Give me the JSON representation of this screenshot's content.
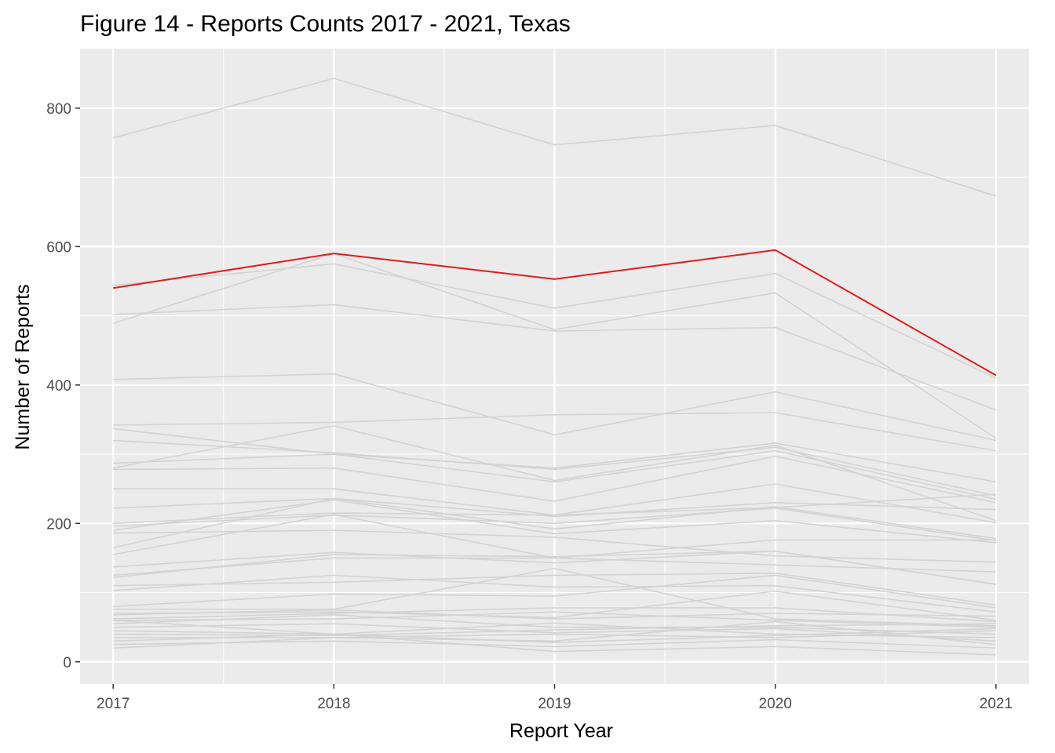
{
  "chart_data": {
    "type": "line",
    "title": "Figure 14 - Reports Counts 2017 - 2021, Texas",
    "xlabel": "Report Year",
    "ylabel": "Number of Reports",
    "x": [
      2017,
      2018,
      2019,
      2020,
      2021
    ],
    "xlim": [
      2016.85,
      2021.15
    ],
    "ylim": [
      -32,
      886
    ],
    "y_ticks": [
      0,
      200,
      400,
      600,
      800
    ],
    "grid": true,
    "background": "#ebebeb",
    "colors": {
      "highlight": "#e41a1c",
      "other": "#d3d3d3",
      "grid": "#ffffff"
    },
    "highlight_series": {
      "name": "Texas",
      "values": [
        540,
        590,
        553,
        595,
        414
      ]
    },
    "other_series": [
      [
        757,
        843,
        747,
        775,
        673
      ],
      [
        544,
        575,
        511,
        561,
        410
      ],
      [
        489,
        590,
        480,
        533,
        323
      ],
      [
        502,
        516,
        478,
        483,
        364
      ],
      [
        408,
        416,
        328,
        390,
        320
      ],
      [
        342,
        346,
        357,
        360,
        305
      ],
      [
        337,
        300,
        280,
        316,
        260
      ],
      [
        320,
        302,
        278,
        310,
        240
      ],
      [
        287,
        300,
        260,
        305,
        235
      ],
      [
        280,
        341,
        262,
        313,
        204
      ],
      [
        278,
        280,
        232,
        297,
        230
      ],
      [
        250,
        250,
        212,
        257,
        201
      ],
      [
        222,
        236,
        210,
        230,
        220
      ],
      [
        200,
        215,
        212,
        223,
        242
      ],
      [
        196,
        212,
        200,
        222,
        175
      ],
      [
        190,
        234,
        185,
        204,
        172
      ],
      [
        186,
        190,
        180,
        153,
        144
      ],
      [
        165,
        236,
        192,
        224,
        178
      ],
      [
        155,
        213,
        150,
        176,
        176
      ],
      [
        137,
        158,
        143,
        160,
        112
      ],
      [
        125,
        150,
        150,
        140,
        130
      ],
      [
        122,
        155,
        152,
        160,
        112
      ],
      [
        110,
        115,
        125,
        128,
        82
      ],
      [
        103,
        125,
        108,
        110,
        72
      ],
      [
        80,
        98,
        95,
        125,
        78
      ],
      [
        76,
        76,
        135,
        62,
        52
      ],
      [
        70,
        72,
        64,
        102,
        60
      ],
      [
        62,
        70,
        78,
        78,
        58
      ],
      [
        60,
        62,
        72,
        60,
        50
      ],
      [
        55,
        68,
        50,
        50,
        40
      ],
      [
        50,
        55,
        42,
        48,
        30
      ],
      [
        45,
        40,
        56,
        40,
        35
      ],
      [
        40,
        38,
        46,
        52,
        55
      ],
      [
        35,
        35,
        30,
        58,
        25
      ],
      [
        30,
        40,
        15,
        22,
        10
      ],
      [
        25,
        30,
        22,
        32,
        20
      ],
      [
        20,
        35,
        40,
        35,
        45
      ],
      [
        60,
        40,
        28,
        38,
        48
      ],
      [
        68,
        75,
        62,
        70,
        66
      ]
    ]
  }
}
